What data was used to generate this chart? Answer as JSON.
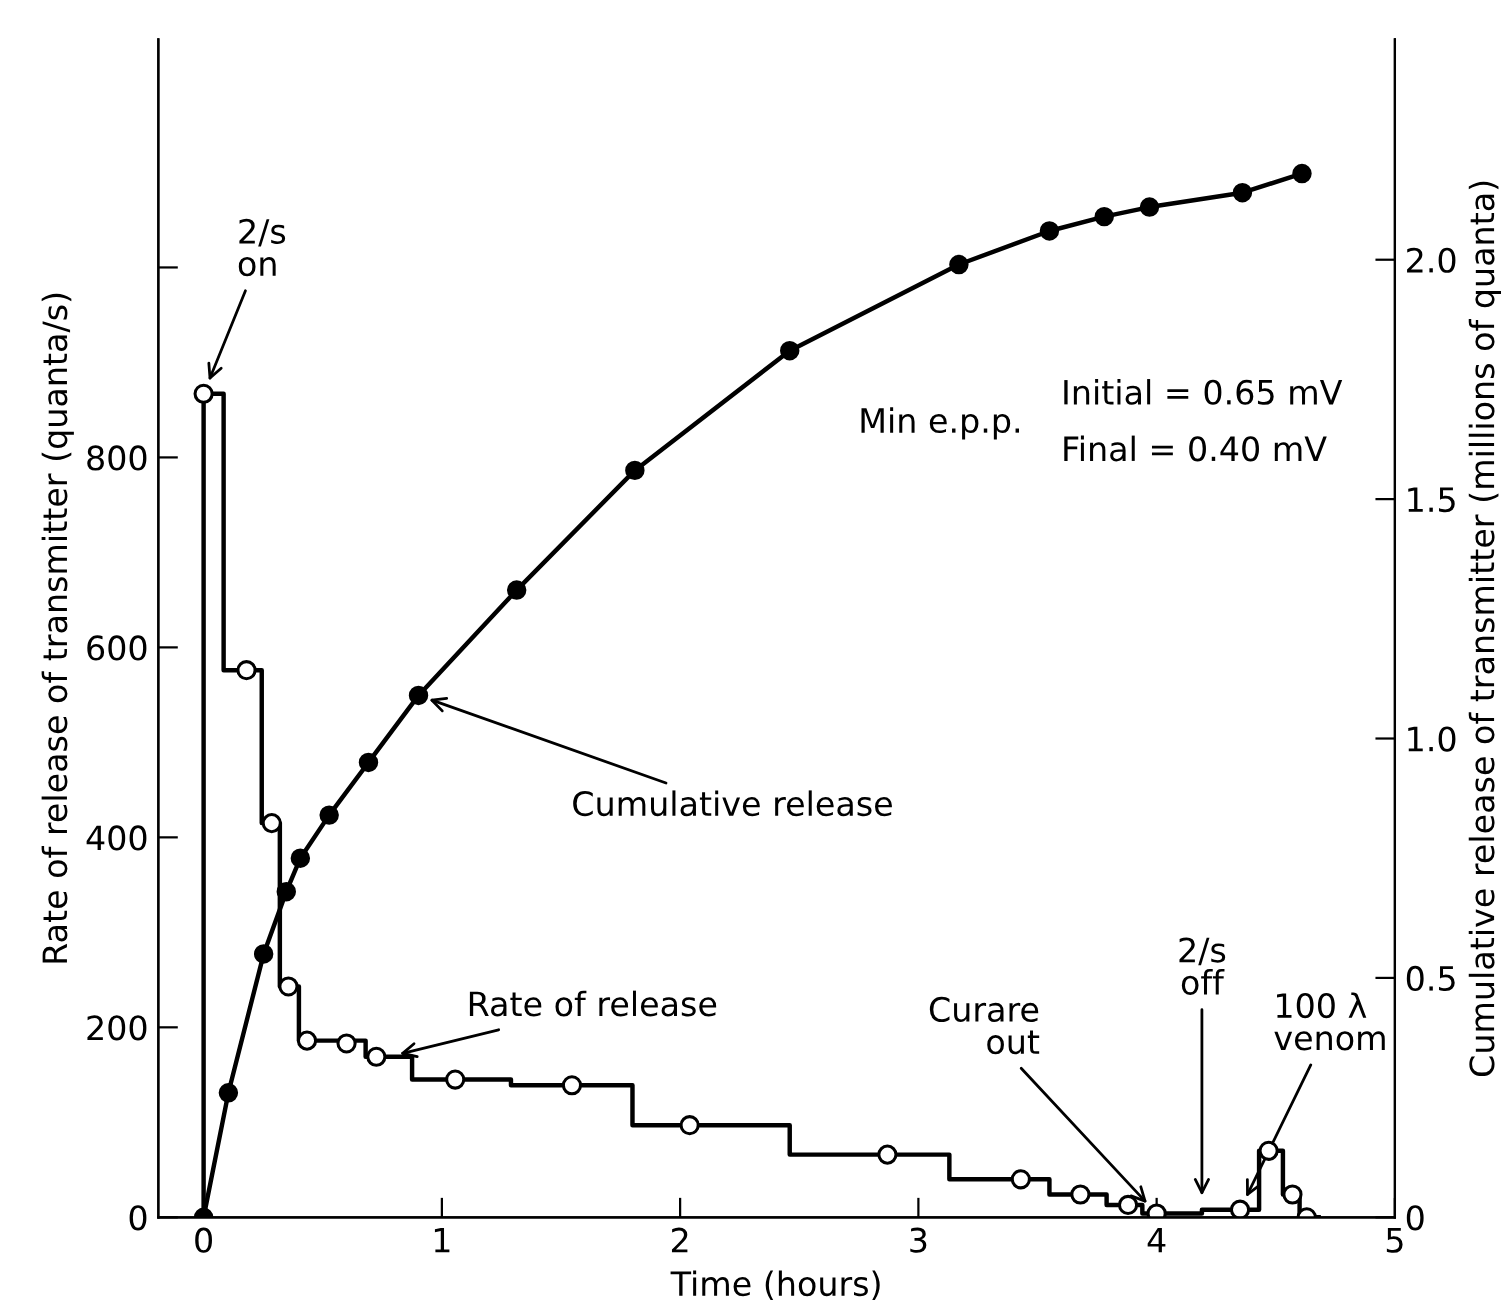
{
  "chart_data": {
    "type": "line",
    "xlabel": "Time (hours)",
    "ylabel": "Rate of release of transmitter (quanta/s)",
    "y2label": "Cumulative release of transmitter (millions of quanta)",
    "xlim": [
      -0.19,
      5
    ],
    "xticks": [
      0,
      1,
      2,
      3,
      4,
      5
    ],
    "ylim": [
      0,
      1240
    ],
    "yticks": [
      0,
      200,
      400,
      600,
      800,
      {
        "value": 1000,
        "label": null
      }
    ],
    "y2lim": [
      0,
      2.46
    ],
    "y2ticks": [
      0,
      0.5,
      {
        "value": 1,
        "label": "1.0"
      },
      1.5,
      {
        "value": 2,
        "label": "2.0"
      }
    ],
    "series": [
      {
        "name": "Rate of release",
        "type": "step",
        "color": "#000000",
        "x": [
          0,
          0,
          0.084,
          0.244,
          0.32,
          0.4,
          0.68,
          0.875,
          1.29,
          1.8,
          2.46,
          3.13,
          3.55,
          3.79,
          3.94,
          4.19,
          4.43,
          4.53,
          4.6,
          4.68
        ],
        "values": [
          0,
          867,
          576,
          415,
          243,
          186,
          169,
          145,
          139,
          97,
          66,
          40,
          24,
          13,
          4,
          8,
          70,
          24,
          0,
          0
        ]
      },
      {
        "type": "scatter",
        "color": "#ffffff",
        "marker": "circle",
        "x": [
          0,
          0.18,
          0.286,
          0.356,
          0.434,
          0.6,
          0.725,
          1.056,
          1.546,
          2.04,
          2.87,
          3.43,
          3.68,
          3.88,
          4.0,
          4.35,
          4.47,
          4.57,
          4.63
        ],
        "values": [
          867,
          576,
          415,
          243,
          186,
          183,
          169,
          145,
          139,
          97,
          66,
          40,
          24,
          13,
          4,
          8,
          70,
          24,
          0
        ]
      },
      {
        "name": "Cumulative release",
        "axis": "y2",
        "color": "#000000",
        "marker": "circle",
        "x": [
          0,
          0.104,
          0.252,
          0.347,
          0.406,
          0.527,
          0.692,
          0.902,
          1.314,
          1.81,
          2.46,
          3.17,
          3.55,
          3.78,
          3.97,
          4.36,
          4.61
        ],
        "values": [
          0,
          0.26,
          0.55,
          0.68,
          0.75,
          0.84,
          0.95,
          1.09,
          1.31,
          1.56,
          1.81,
          1.99,
          2.06,
          2.09,
          2.11,
          2.14,
          2.18
        ]
      }
    ],
    "annotations": [
      {
        "text": "2/s\non",
        "x": 0,
        "y": 867
      },
      {
        "text": "Curare\nout",
        "x": 4.0,
        "y": 4
      },
      {
        "text": "2/s\noff",
        "x": 4.19,
        "y": 8
      },
      {
        "text": "100 λ\nvenom",
        "x": 4.35,
        "y": 8
      },
      "Min e.p.p.",
      "Initial = 0.65 mV",
      "Final = 0.40 mV"
    ]
  }
}
